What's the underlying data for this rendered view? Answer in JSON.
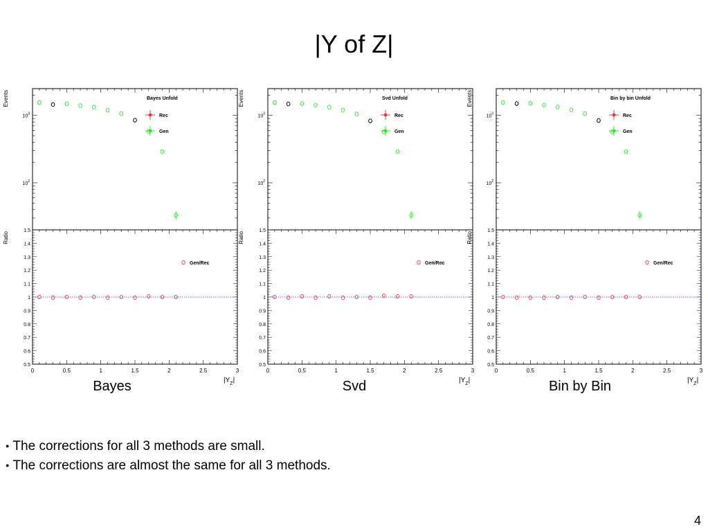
{
  "slide": {
    "title": "|Y of Z|",
    "page_number": "4",
    "bullets": [
      "The corrections for all 3 methods are small.",
      "The corrections are almost the same for all 3 methods."
    ]
  },
  "colors": {
    "rec": "#e8383d",
    "gen": "#28e828",
    "ratio_marker": "#e8383d",
    "reference_line": "#3a3ae8"
  },
  "chart_data": [
    {
      "type": "scatter",
      "panel_label": "Bayes",
      "legend_title": "Bayes Unfold",
      "top": {
        "ylabel": "Events",
        "yscale": "log",
        "ylim": [
          20,
          2500
        ],
        "ytick_labels": [
          "10",
          "10"
        ],
        "ytick_exponents": [
          "2",
          "3"
        ],
        "legend_placement": "top-right",
        "series": [
          {
            "name": "Rec",
            "x": [
              0.3,
              1.5
            ],
            "values": [
              1450,
              850
            ]
          },
          {
            "name": "Gen",
            "x": [
              0.1,
              0.3,
              0.5,
              0.7,
              0.9,
              1.1,
              1.3,
              1.5,
              1.7,
              1.9,
              2.1
            ],
            "values": [
              1550,
              1450,
              1490,
              1400,
              1330,
              1200,
              1060,
              850,
              580,
              290,
              33
            ]
          }
        ]
      },
      "bottom": {
        "ylabel": "Ratio",
        "ylim": [
          0.5,
          1.5
        ],
        "ytick_labels": [
          "0.5",
          "0.6",
          "0.7",
          "0.8",
          "0.9",
          "1",
          "1.1",
          "1.2",
          "1.3",
          "1.4",
          "1.5"
        ],
        "legend_placement": "top-right",
        "series": [
          {
            "name": "Gen/Rec",
            "x": [
              0.1,
              0.3,
              0.5,
              0.7,
              0.9,
              1.1,
              1.3,
              1.5,
              1.7,
              1.9,
              2.1
            ],
            "values": [
              1.0,
              0.995,
              1.0,
              0.995,
              1.0,
              0.995,
              1.0,
              0.995,
              1.005,
              1.0,
              1.0
            ]
          }
        ],
        "reference_y": 1.0
      },
      "x_axis": {
        "xlim": [
          0,
          3
        ],
        "tick_labels": [
          "0",
          "0.5",
          "1",
          "1.5",
          "2",
          "2.5",
          "3"
        ],
        "xlabel_main": "|Y",
        "xlabel_sub": "Z",
        "xlabel_close": "|"
      }
    },
    {
      "type": "scatter",
      "panel_label": "Svd",
      "legend_title": "Svd Unfold",
      "top": {
        "ylabel": "Events",
        "yscale": "log",
        "ylim": [
          20,
          2500
        ],
        "ytick_labels": [
          "10",
          "10"
        ],
        "ytick_exponents": [
          "2",
          "3"
        ],
        "legend_placement": "top-right",
        "series": [
          {
            "name": "Rec",
            "x": [
              0.3,
              1.5
            ],
            "values": [
              1480,
              830
            ]
          },
          {
            "name": "Gen",
            "x": [
              0.1,
              0.3,
              0.5,
              0.7,
              0.9,
              1.1,
              1.3,
              1.5,
              1.7,
              1.9,
              2.1
            ],
            "values": [
              1550,
              1480,
              1500,
              1420,
              1330,
              1200,
              1050,
              830,
              570,
              290,
              33
            ]
          }
        ]
      },
      "bottom": {
        "ylabel": "Ratio",
        "ylim": [
          0.5,
          1.5
        ],
        "ytick_labels": [
          "0.5",
          "0.6",
          "0.7",
          "0.8",
          "0.9",
          "1",
          "1.1",
          "1.2",
          "1.3",
          "1.4",
          "1.5"
        ],
        "legend_placement": "top-right",
        "series": [
          {
            "name": "Gen/Rec",
            "x": [
              0.1,
              0.3,
              0.5,
              0.7,
              0.9,
              1.1,
              1.3,
              1.5,
              1.7,
              1.9,
              2.1
            ],
            "values": [
              1.0,
              0.995,
              1.005,
              0.995,
              1.005,
              0.995,
              1.0,
              0.995,
              1.01,
              1.005,
              1.005
            ]
          }
        ],
        "reference_y": 1.0
      },
      "x_axis": {
        "xlim": [
          0,
          3
        ],
        "tick_labels": [
          "0",
          "0.5",
          "1",
          "1.5",
          "2",
          "2.5",
          "3"
        ],
        "xlabel_main": "|Y",
        "xlabel_sub": "Z",
        "xlabel_close": "|"
      }
    },
    {
      "type": "scatter",
      "panel_label": "Bin by Bin",
      "legend_title": "Bin by bin Unfold",
      "top": {
        "ylabel": "Events",
        "yscale": "log",
        "ylim": [
          20,
          2500
        ],
        "ytick_labels": [
          "10",
          "10"
        ],
        "ytick_exponents": [
          "2",
          "3"
        ],
        "legend_placement": "top-right",
        "series": [
          {
            "name": "Rec",
            "x": [
              0.3,
              1.5
            ],
            "values": [
              1500,
              840
            ]
          },
          {
            "name": "Gen",
            "x": [
              0.1,
              0.3,
              0.5,
              0.7,
              0.9,
              1.1,
              1.3,
              1.5,
              1.7,
              1.9,
              2.1
            ],
            "values": [
              1550,
              1500,
              1510,
              1420,
              1340,
              1210,
              1060,
              840,
              570,
              290,
              33
            ]
          }
        ]
      },
      "bottom": {
        "ylabel": "Ratio",
        "ylim": [
          0.5,
          1.5
        ],
        "ytick_labels": [
          "0.5",
          "0.6",
          "0.7",
          "0.8",
          "0.9",
          "1",
          "1.1",
          "1.2",
          "1.3",
          "1.4",
          "1.5"
        ],
        "legend_placement": "top-right",
        "series": [
          {
            "name": "Gen/Rec",
            "x": [
              0.1,
              0.3,
              0.5,
              0.7,
              0.9,
              1.1,
              1.3,
              1.5,
              1.7,
              1.9,
              2.1
            ],
            "values": [
              1.0,
              0.995,
              0.995,
              0.995,
              1.0,
              0.995,
              1.0,
              0.995,
              1.0,
              1.0,
              1.0
            ]
          }
        ],
        "reference_y": 1.0
      },
      "x_axis": {
        "xlim": [
          0,
          3
        ],
        "tick_labels": [
          "0",
          "0.5",
          "1",
          "1.5",
          "2",
          "2.5",
          "3"
        ],
        "xlabel_main": "|Y",
        "xlabel_sub": "Z",
        "xlabel_close": "|"
      }
    }
  ]
}
